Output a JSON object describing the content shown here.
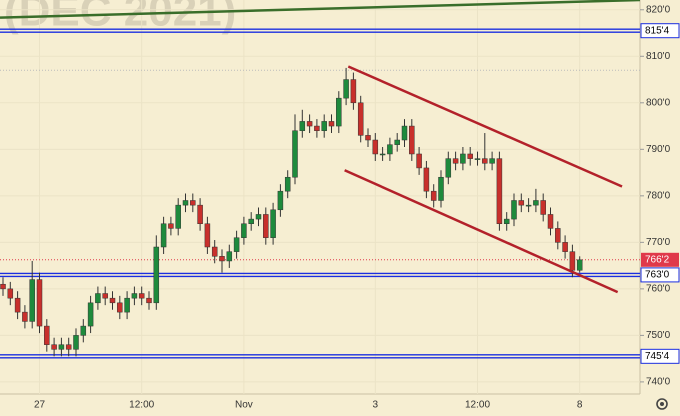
{
  "chart_data": {
    "type": "candlestick",
    "watermark": "(DEC 2021)",
    "background": "#f6eed2",
    "up_color": "#1e8a3c",
    "down_color": "#c8302c",
    "categories": [
      null,
      null,
      null,
      null,
      null,
      "27",
      null,
      null,
      null,
      null,
      null,
      null,
      null,
      null,
      null,
      null,
      null,
      null,
      null,
      "12:00",
      null,
      null,
      null,
      null,
      null,
      null,
      null,
      null,
      null,
      null,
      null,
      null,
      null,
      "Nov",
      null,
      null,
      null,
      null,
      null,
      null,
      null,
      null,
      null,
      null,
      null,
      null,
      null,
      null,
      null,
      null,
      null,
      "3",
      null,
      null,
      null,
      null,
      null,
      null,
      null,
      null,
      null,
      null,
      null,
      null,
      null,
      "12:00",
      null,
      null,
      null,
      null,
      null,
      null,
      null,
      null,
      null,
      null,
      null,
      null,
      null,
      "8"
    ],
    "open": [
      761,
      760,
      758,
      755,
      753,
      762,
      752,
      748,
      747,
      748,
      747,
      750,
      752,
      757,
      759,
      758,
      757,
      755,
      758,
      759,
      758,
      757,
      769,
      774,
      773,
      778,
      779,
      778,
      774,
      769,
      767,
      766,
      768,
      771,
      774,
      775,
      776,
      771,
      777,
      781,
      784,
      794,
      796,
      795,
      794,
      796,
      795,
      801,
      805,
      800,
      793,
      792,
      789,
      789,
      791,
      792,
      795,
      789,
      786,
      781,
      779,
      784,
      788,
      787,
      789,
      788,
      788,
      787,
      788,
      774,
      775,
      779,
      778,
      778,
      779,
      776,
      773,
      770,
      768,
      764
    ],
    "high": [
      762.5,
      761.5,
      759.5,
      756.5,
      766,
      763.5,
      753.5,
      749.5,
      749.5,
      749.5,
      751.5,
      753.5,
      758.5,
      760.5,
      760.5,
      759.5,
      758.5,
      759.5,
      760.5,
      760.5,
      759.5,
      771.5,
      775.5,
      775.5,
      779.5,
      780.5,
      780.5,
      779.5,
      775.5,
      770.5,
      768.5,
      769.5,
      772.5,
      775.5,
      776.5,
      777.5,
      777.5,
      778.5,
      782.5,
      785.5,
      797.5,
      798.5,
      797.5,
      796.5,
      797.5,
      797.5,
      802.5,
      807.5,
      806.5,
      801.5,
      794.5,
      793.5,
      790.5,
      792.5,
      793.5,
      796.5,
      796.5,
      790.5,
      787.5,
      782.5,
      785.5,
      789.5,
      789.5,
      790.5,
      790.5,
      789.5,
      793.5,
      789.5,
      789.5,
      776.5,
      780.5,
      780.5,
      779.5,
      781.5,
      780.5,
      777.5,
      774.5,
      771.5,
      769.5,
      767
    ],
    "low": [
      758.5,
      756.5,
      753.5,
      751.5,
      751.5,
      750.5,
      746.5,
      745.5,
      745.5,
      745.5,
      745.5,
      748.5,
      750.5,
      755.5,
      756.5,
      755.5,
      753.5,
      753.5,
      756.5,
      756.5,
      755.5,
      755.5,
      767.5,
      771.5,
      771.5,
      776.5,
      776.5,
      772.5,
      767.5,
      765.5,
      763.5,
      764.5,
      766.5,
      769.5,
      772.5,
      773.5,
      769.5,
      769.5,
      775.5,
      779.5,
      782.5,
      792.5,
      793.5,
      792.5,
      792.5,
      793.5,
      793.5,
      799.5,
      798.5,
      791.5,
      790.5,
      787.5,
      787.5,
      787.5,
      789.5,
      790.5,
      787.5,
      784.5,
      779.5,
      777.5,
      777.5,
      782.5,
      785.5,
      785.5,
      786.5,
      786.5,
      785.5,
      785.5,
      772.5,
      772.5,
      773.5,
      776.5,
      776.5,
      776.5,
      774.5,
      771.5,
      768.5,
      766.5,
      762.5,
      763.5
    ],
    "close": [
      760,
      758,
      755,
      753,
      762,
      752,
      748,
      747,
      748,
      747,
      750,
      752,
      757,
      759,
      758,
      757,
      755,
      758,
      759,
      758,
      757,
      769,
      774,
      773,
      778,
      779,
      778,
      774,
      769,
      767,
      766,
      768,
      771,
      774,
      775,
      776,
      771,
      777,
      781,
      784,
      794,
      796,
      795,
      794,
      796,
      795,
      801,
      805,
      800,
      793,
      792,
      789,
      789,
      791,
      792,
      795,
      789,
      786,
      781,
      779,
      784,
      788,
      787,
      789,
      788,
      788,
      787,
      788,
      774,
      775,
      779,
      778,
      778,
      779,
      776,
      773,
      770,
      768,
      764,
      766.25
    ],
    "ylim": [
      737.4,
      822.1
    ],
    "yticks": [
      {
        "value": 740,
        "label": "740'0"
      },
      {
        "value": 750,
        "label": "750'0"
      },
      {
        "value": 760,
        "label": "760'0"
      },
      {
        "value": 770,
        "label": "770'0"
      },
      {
        "value": 780,
        "label": "780'0"
      },
      {
        "value": 790,
        "label": "790'0"
      },
      {
        "value": 800,
        "label": "800'0"
      },
      {
        "value": 810,
        "label": "810'0"
      },
      {
        "value": 820,
        "label": "820'0"
      }
    ],
    "grid": true,
    "levels": [
      {
        "value": 815.5,
        "label": "815'4",
        "color": "#1b2ee0"
      },
      {
        "value": 763,
        "label": "763'0",
        "color": "#1b2ee0"
      },
      {
        "value": 745.5,
        "label": "745'4",
        "color": "#1b2ee0"
      }
    ],
    "dotted_level": 807,
    "last_price": {
      "value": 766.25,
      "label": "766'2",
      "color": "#e0394a"
    },
    "trendlines": [
      {
        "color": "#3a6e2a",
        "x": [
          -0.41,
          87.3
        ],
        "y": [
          818.3,
          822.1
        ]
      },
      {
        "color": "#b3212a",
        "x": [
          47.3,
          84.8
        ],
        "y": [
          807.8,
          782.0
        ]
      },
      {
        "color": "#b3212a",
        "x": [
          46.8,
          84.2
        ],
        "y": [
          785.5,
          759.3
        ]
      }
    ]
  }
}
